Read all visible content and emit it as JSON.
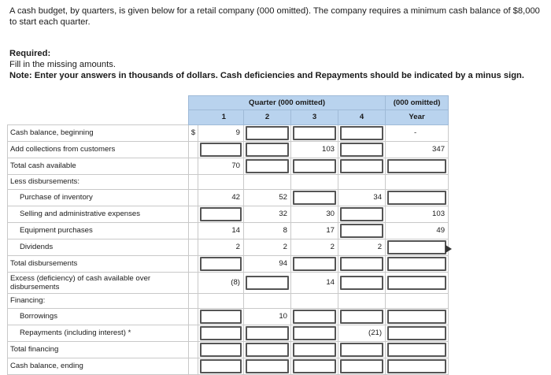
{
  "intro": "A cash budget, by quarters, is given below for a retail company (000 omitted). The company requires a minimum cash balance of $8,000 to start each quarter.",
  "required_label": "Required:",
  "required_text": "Fill in the missing amounts.",
  "note": "Note: Enter your answers in thousands of dollars. Cash deficiencies and Repayments should be indicated by a minus sign.",
  "header": {
    "quarter_group": "Quarter (000 omitted)",
    "year_group": "(000 omitted)",
    "q1": "1",
    "q2": "2",
    "q3": "3",
    "q4": "4",
    "year": "Year",
    "dollar": "$"
  },
  "rows": [
    {
      "label": "Cash balance, beginning",
      "q1": "9",
      "q2": "",
      "q3": "",
      "q4": "",
      "year": "",
      "dollar": "$",
      "year_dash": "-"
    },
    {
      "label": "Add collections from customers",
      "q1": "",
      "q2": "",
      "q3": "103",
      "q4": "",
      "year": "347"
    },
    {
      "label": "Total cash available",
      "q1": "70",
      "q2": "",
      "q3": "",
      "q4": "",
      "year": ""
    },
    {
      "label": "Less disbursements:"
    },
    {
      "label": "Purchase of inventory",
      "q1": "42",
      "q2": "52",
      "q3": "",
      "q4": "34",
      "year": ""
    },
    {
      "label": "Selling and administrative expenses",
      "q1": "",
      "q2": "32",
      "q3": "30",
      "q4": "",
      "year": "103"
    },
    {
      "label": "Equipment purchases",
      "q1": "14",
      "q2": "8",
      "q3": "17",
      "q4": "",
      "year": "49"
    },
    {
      "label": "Dividends",
      "q1": "2",
      "q2": "2",
      "q3": "2",
      "q4": "2",
      "year": ""
    },
    {
      "label": "Total disbursements",
      "q1": "",
      "q2": "94",
      "q3": "",
      "q4": "",
      "year": ""
    },
    {
      "label": "Excess (deficiency) of cash available over disbursements",
      "q1": "(8)",
      "q2": "",
      "q3": "14",
      "q4": "",
      "year": ""
    },
    {
      "label": "Financing:"
    },
    {
      "label": "Borrowings",
      "q1": "",
      "q2": "10",
      "q3": "",
      "q4": "",
      "year": ""
    },
    {
      "label": "Repayments (including interest) *",
      "q1": "",
      "q2": "",
      "q3": "",
      "q4": "(21)",
      "year": ""
    },
    {
      "label": "Total financing",
      "q1": "",
      "q2": "",
      "q3": "",
      "q4": "",
      "year": ""
    },
    {
      "label": "Cash balance, ending",
      "q1": "",
      "q2": "",
      "q3": "",
      "q4": "",
      "year": ""
    }
  ]
}
